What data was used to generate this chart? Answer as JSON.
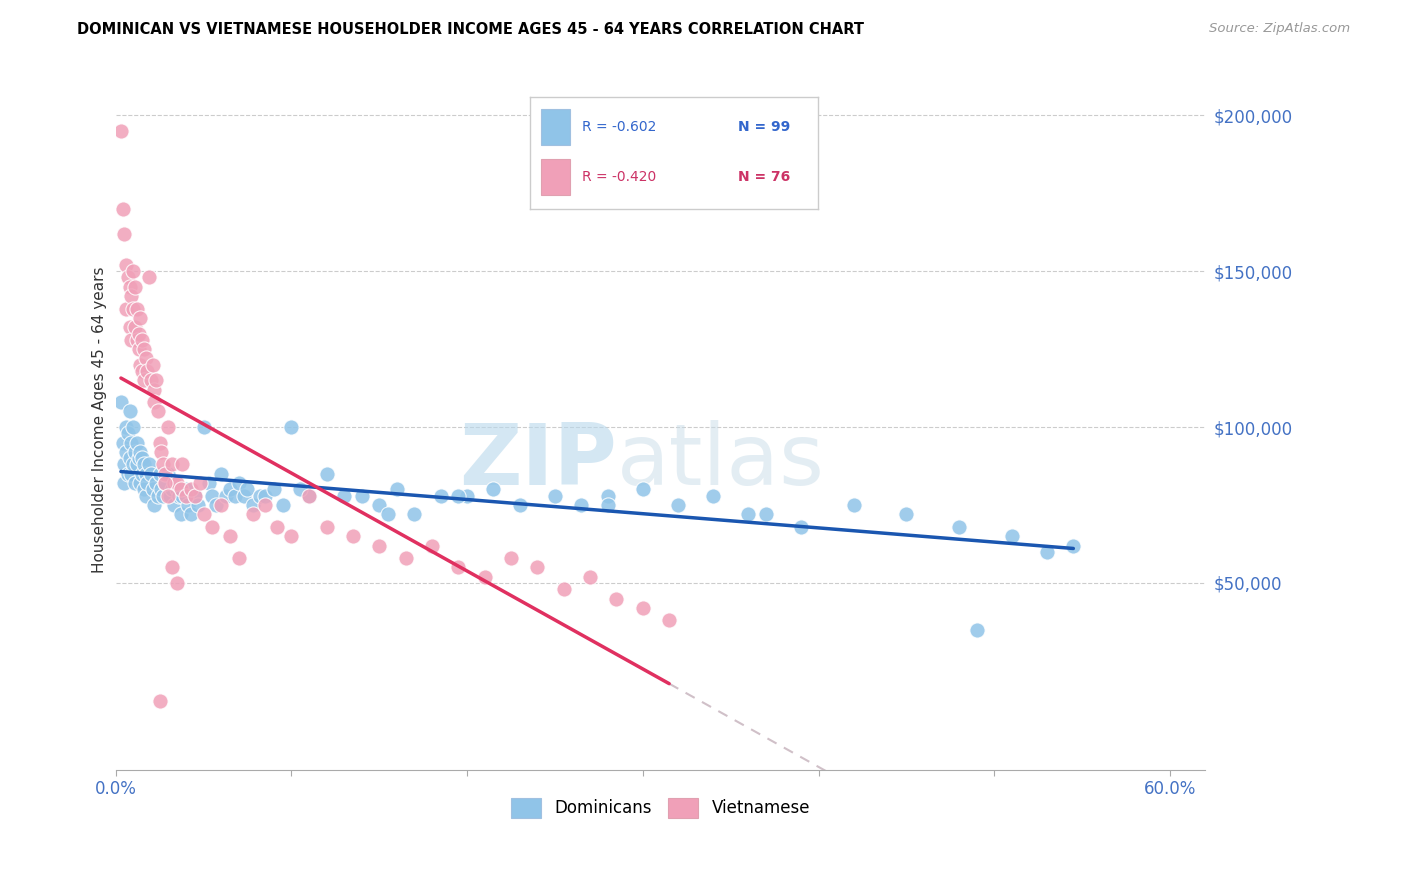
{
  "title": "DOMINICAN VS VIETNAMESE HOUSEHOLDER INCOME AGES 45 - 64 YEARS CORRELATION CHART",
  "source": "Source: ZipAtlas.com",
  "ylabel": "Householder Income Ages 45 - 64 years",
  "xlim": [
    0.0,
    0.62
  ],
  "ylim": [
    -10000,
    215000
  ],
  "xticks": [
    0.0,
    0.6
  ],
  "xticklabels": [
    "0.0%",
    "60.0%"
  ],
  "yticks_right": [
    50000,
    100000,
    150000,
    200000
  ],
  "ytick_labels_right": [
    "$50,000",
    "$100,000",
    "$150,000",
    "$200,000"
  ],
  "dominicans_color": "#90c4e8",
  "vietnamese_color": "#f0a0b8",
  "trendline_dominicans_color": "#1a56b0",
  "trendline_vietnamese_color": "#e03060",
  "trendline_dashed_color": "#d0c0c8",
  "legend_r_dominicans": "R = -0.602",
  "legend_n_dominicans": "N = 99",
  "legend_r_vietnamese": "R = -0.420",
  "legend_n_vietnamese": "N = 76",
  "watermark_zip": "ZIP",
  "watermark_atlas": "atlas",
  "dominicans_x": [
    0.003,
    0.004,
    0.005,
    0.005,
    0.006,
    0.006,
    0.007,
    0.007,
    0.008,
    0.008,
    0.009,
    0.009,
    0.01,
    0.01,
    0.011,
    0.011,
    0.012,
    0.012,
    0.013,
    0.014,
    0.014,
    0.015,
    0.015,
    0.016,
    0.016,
    0.017,
    0.017,
    0.018,
    0.019,
    0.02,
    0.021,
    0.022,
    0.023,
    0.024,
    0.025,
    0.026,
    0.027,
    0.028,
    0.03,
    0.031,
    0.032,
    0.033,
    0.035,
    0.036,
    0.037,
    0.038,
    0.04,
    0.041,
    0.043,
    0.045,
    0.047,
    0.05,
    0.053,
    0.055,
    0.057,
    0.06,
    0.063,
    0.065,
    0.068,
    0.07,
    0.073,
    0.075,
    0.078,
    0.082,
    0.085,
    0.09,
    0.095,
    0.1,
    0.11,
    0.12,
    0.13,
    0.14,
    0.15,
    0.16,
    0.17,
    0.185,
    0.2,
    0.215,
    0.23,
    0.25,
    0.265,
    0.28,
    0.3,
    0.32,
    0.34,
    0.36,
    0.39,
    0.42,
    0.45,
    0.48,
    0.51,
    0.53,
    0.545,
    0.49,
    0.37,
    0.28,
    0.195,
    0.155,
    0.105
  ],
  "dominicans_y": [
    108000,
    95000,
    88000,
    82000,
    100000,
    92000,
    98000,
    85000,
    105000,
    90000,
    95000,
    85000,
    100000,
    88000,
    92000,
    82000,
    95000,
    88000,
    90000,
    92000,
    82000,
    90000,
    85000,
    88000,
    80000,
    85000,
    78000,
    82000,
    88000,
    85000,
    80000,
    75000,
    82000,
    78000,
    85000,
    80000,
    78000,
    82000,
    85000,
    78000,
    80000,
    75000,
    80000,
    78000,
    72000,
    78000,
    80000,
    75000,
    72000,
    78000,
    75000,
    100000,
    82000,
    78000,
    75000,
    85000,
    78000,
    80000,
    78000,
    82000,
    78000,
    80000,
    75000,
    78000,
    78000,
    80000,
    75000,
    100000,
    78000,
    85000,
    78000,
    78000,
    75000,
    80000,
    72000,
    78000,
    78000,
    80000,
    75000,
    78000,
    75000,
    78000,
    80000,
    75000,
    78000,
    72000,
    68000,
    75000,
    72000,
    68000,
    65000,
    60000,
    62000,
    35000,
    72000,
    75000,
    78000,
    72000,
    80000
  ],
  "vietnamese_x": [
    0.003,
    0.004,
    0.005,
    0.006,
    0.006,
    0.007,
    0.008,
    0.008,
    0.009,
    0.009,
    0.01,
    0.01,
    0.011,
    0.011,
    0.012,
    0.012,
    0.013,
    0.013,
    0.014,
    0.014,
    0.015,
    0.015,
    0.016,
    0.016,
    0.017,
    0.018,
    0.019,
    0.02,
    0.021,
    0.022,
    0.022,
    0.023,
    0.024,
    0.025,
    0.026,
    0.027,
    0.028,
    0.03,
    0.032,
    0.033,
    0.035,
    0.037,
    0.038,
    0.04,
    0.043,
    0.045,
    0.048,
    0.05,
    0.055,
    0.06,
    0.065,
    0.07,
    0.078,
    0.085,
    0.092,
    0.1,
    0.11,
    0.12,
    0.135,
    0.15,
    0.165,
    0.18,
    0.195,
    0.21,
    0.225,
    0.24,
    0.255,
    0.27,
    0.285,
    0.3,
    0.315,
    0.028,
    0.03,
    0.025,
    0.032,
    0.035
  ],
  "vietnamese_y": [
    195000,
    170000,
    162000,
    152000,
    138000,
    148000,
    145000,
    132000,
    142000,
    128000,
    138000,
    150000,
    132000,
    145000,
    128000,
    138000,
    125000,
    130000,
    135000,
    120000,
    128000,
    118000,
    125000,
    115000,
    122000,
    118000,
    148000,
    115000,
    120000,
    112000,
    108000,
    115000,
    105000,
    95000,
    92000,
    88000,
    85000,
    100000,
    88000,
    82000,
    82000,
    80000,
    88000,
    78000,
    80000,
    78000,
    82000,
    72000,
    68000,
    75000,
    65000,
    58000,
    72000,
    75000,
    68000,
    65000,
    78000,
    68000,
    65000,
    62000,
    58000,
    62000,
    55000,
    52000,
    58000,
    55000,
    48000,
    52000,
    45000,
    42000,
    38000,
    82000,
    78000,
    12000,
    55000,
    50000
  ]
}
